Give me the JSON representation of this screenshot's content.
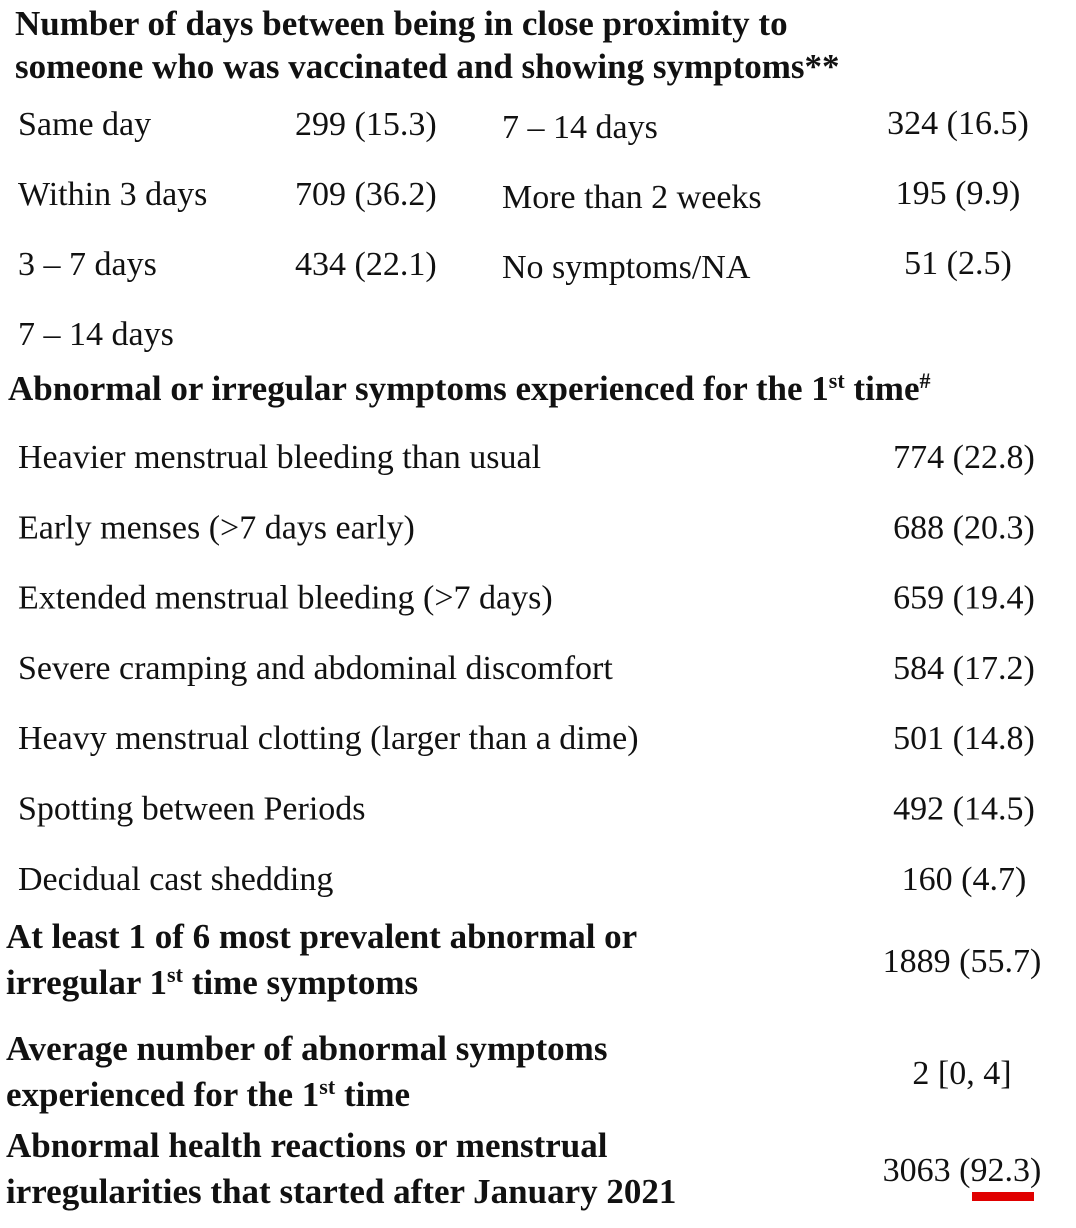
{
  "proximity": {
    "title": [
      "Number of days between being in close proximity to",
      "someone who was vaccinated and showing symptoms**"
    ],
    "left": [
      [
        "Same day",
        "299 (15.3)"
      ],
      [
        "Within 3 days",
        "709 (36.2)"
      ],
      [
        "3 – 7 days",
        "434 (22.1)"
      ],
      [
        "7 – 14 days"
      ]
    ],
    "right": [
      [
        "7 – 14 days",
        "324 (16.5)"
      ],
      [
        "More than 2 weeks",
        "195 (9.9)"
      ],
      [
        "No symptoms/NA",
        "51 (2.5)"
      ]
    ]
  },
  "symptoms": {
    "heading": [
      {
        "text": "Abnormal or irregular symptoms experienced for the 1"
      },
      {
        "text": "st",
        "sup": true
      },
      {
        "text": " time"
      },
      {
        "text": "#",
        "sup": true
      }
    ],
    "rows": [
      [
        "Heavier menstrual bleeding than usual",
        "774 (22.8)"
      ],
      [
        "Early menses (>7 days early)",
        "688 (20.3)"
      ],
      [
        "Extended menstrual bleeding (>7 days)",
        "659 (19.4)"
      ],
      [
        "Severe cramping and abdominal discomfort",
        "584 (17.2)"
      ],
      [
        "Heavy menstrual clotting (larger than a dime)",
        "501 (14.8)"
      ],
      [
        "Spotting between Periods",
        "492 (14.5)"
      ],
      [
        "Decidual cast shedding",
        "160 (4.7)"
      ]
    ]
  },
  "summary": [
    {
      "label": [
        [
          {
            "text": "At least 1 of 6 most prevalent abnormal or"
          }
        ],
        [
          {
            "text": "irregular 1"
          },
          {
            "text": "st",
            "sup": true
          },
          {
            "text": " time symptoms"
          }
        ]
      ],
      "value": "1889 (55.7)"
    },
    {
      "label": [
        [
          {
            "text": "Average number of abnormal symptoms"
          }
        ],
        [
          {
            "text": "experienced for the 1"
          },
          {
            "text": "st",
            "sup": true
          },
          {
            "text": " time"
          }
        ]
      ],
      "value": "2 [0, 4]"
    },
    {
      "label": [
        [
          {
            "text": "Abnormal health reactions or menstrual"
          }
        ],
        [
          {
            "text": "irregularities that started after January 2021"
          }
        ]
      ],
      "value": "3063 (92.3)"
    }
  ]
}
